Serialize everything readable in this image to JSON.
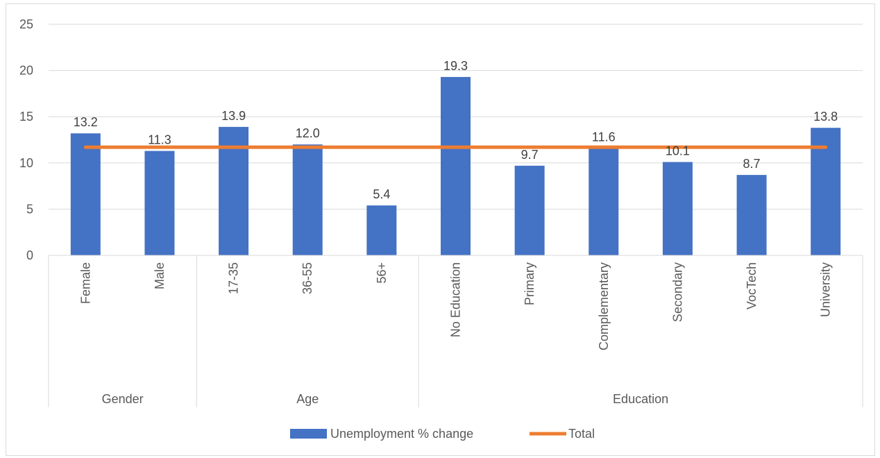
{
  "chart_data": {
    "type": "bar",
    "title": "",
    "xlabel": "",
    "ylabel": "",
    "ylim": [
      0,
      25
    ],
    "yticks": [
      0,
      5,
      10,
      15,
      20,
      25
    ],
    "grid": true,
    "legend_position": "bottom",
    "categories": [
      "Female",
      "Male",
      "17-35",
      "36-55",
      "56+",
      "No Education",
      "Primary",
      "Complementary",
      "Secondary",
      "VocTech",
      "University"
    ],
    "groups": [
      {
        "name": "Gender",
        "count": 2
      },
      {
        "name": "Age",
        "count": 3
      },
      {
        "name": "Education",
        "count": 6
      }
    ],
    "series": [
      {
        "name": "Unemployment % change",
        "type": "bar",
        "color": "#4472c4",
        "values": [
          13.2,
          11.3,
          13.9,
          12.0,
          5.4,
          19.3,
          9.7,
          11.6,
          10.1,
          8.7,
          13.8
        ],
        "labels": [
          "13.2",
          "11.3",
          "13.9",
          "12.0",
          "5.4",
          "19.3",
          "9.7",
          "11.6",
          "10.1",
          "8.7",
          "13.8"
        ]
      },
      {
        "name": "Total",
        "type": "line",
        "color": "#ed7d31",
        "values": [
          11.7,
          11.7,
          11.7,
          11.7,
          11.7,
          11.7,
          11.7,
          11.7,
          11.7,
          11.7,
          11.7
        ]
      }
    ]
  }
}
